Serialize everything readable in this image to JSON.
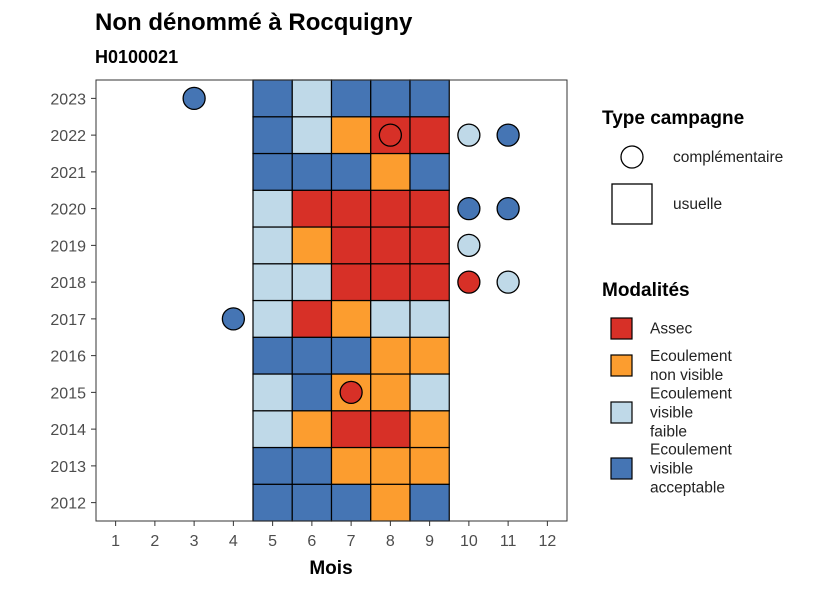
{
  "chart_data": {
    "type": "heatmap",
    "title": "Non dénommé à Rocquigny",
    "subtitle": "H0100021",
    "xlabel": "Mois",
    "ylabel": "",
    "x_ticks": [
      1,
      2,
      3,
      4,
      5,
      6,
      7,
      8,
      9,
      10,
      11,
      12
    ],
    "y_ticks": [
      2012,
      2013,
      2014,
      2015,
      2016,
      2017,
      2018,
      2019,
      2020,
      2021,
      2022,
      2023
    ],
    "xlim": [
      0.5,
      12.5
    ],
    "ylim": [
      2011.5,
      2023.5
    ],
    "grid": false,
    "categories": [
      {
        "key": "assec",
        "label": "Assec",
        "color": "#d73027"
      },
      {
        "key": "non_visible",
        "label": "Ecoulement non visible",
        "color": "#fc9d2f"
      },
      {
        "key": "visible_faible",
        "label": "Ecoulement visible faible",
        "color": "#bfd9e8"
      },
      {
        "key": "visible_acceptable",
        "label": "Ecoulement visible acceptable",
        "color": "#4575b4"
      }
    ],
    "campaign_types": [
      {
        "key": "complementaire",
        "label": "complémentaire",
        "shape": "circle"
      },
      {
        "key": "usuelle",
        "label": "usuelle",
        "shape": "square"
      }
    ],
    "legend_titles": {
      "type": "Type campagne",
      "modalites": "Modalités"
    },
    "legend_position": "right",
    "usual": [
      {
        "year": 2012,
        "months": {
          "5": "visible_acceptable",
          "6": "visible_acceptable",
          "7": "visible_acceptable",
          "8": "non_visible",
          "9": "visible_acceptable"
        }
      },
      {
        "year": 2013,
        "months": {
          "5": "visible_acceptable",
          "6": "visible_acceptable",
          "7": "non_visible",
          "8": "non_visible",
          "9": "non_visible"
        }
      },
      {
        "year": 2014,
        "months": {
          "5": "visible_faible",
          "6": "non_visible",
          "7": "assec",
          "8": "assec",
          "9": "non_visible"
        }
      },
      {
        "year": 2015,
        "months": {
          "5": "visible_faible",
          "6": "visible_acceptable",
          "7": "non_visible",
          "8": "non_visible",
          "9": "visible_faible"
        }
      },
      {
        "year": 2016,
        "months": {
          "5": "visible_acceptable",
          "6": "visible_acceptable",
          "7": "visible_acceptable",
          "8": "non_visible",
          "9": "non_visible"
        }
      },
      {
        "year": 2017,
        "months": {
          "5": "visible_faible",
          "6": "assec",
          "7": "non_visible",
          "8": "visible_faible",
          "9": "visible_faible"
        }
      },
      {
        "year": 2018,
        "months": {
          "5": "visible_faible",
          "6": "visible_faible",
          "7": "assec",
          "8": "assec",
          "9": "assec"
        }
      },
      {
        "year": 2019,
        "months": {
          "5": "visible_faible",
          "6": "non_visible",
          "7": "assec",
          "8": "assec",
          "9": "assec"
        }
      },
      {
        "year": 2020,
        "months": {
          "5": "visible_faible",
          "6": "assec",
          "7": "assec",
          "8": "assec",
          "9": "assec"
        }
      },
      {
        "year": 2021,
        "months": {
          "5": "visible_acceptable",
          "6": "visible_acceptable",
          "7": "visible_acceptable",
          "8": "non_visible",
          "9": "visible_acceptable"
        }
      },
      {
        "year": 2022,
        "months": {
          "5": "visible_acceptable",
          "6": "visible_faible",
          "7": "non_visible",
          "8": "assec",
          "9": "assec"
        }
      },
      {
        "year": 2023,
        "months": {
          "5": "visible_acceptable",
          "6": "visible_faible",
          "7": "visible_acceptable",
          "8": "visible_acceptable",
          "9": "visible_acceptable"
        }
      }
    ],
    "complementary": [
      {
        "year": 2023,
        "month": 3,
        "value": "visible_acceptable"
      },
      {
        "year": 2022,
        "month": 8,
        "value": "assec"
      },
      {
        "year": 2022,
        "month": 10,
        "value": "visible_faible"
      },
      {
        "year": 2022,
        "month": 11,
        "value": "visible_acceptable"
      },
      {
        "year": 2020,
        "month": 10,
        "value": "visible_acceptable"
      },
      {
        "year": 2020,
        "month": 11,
        "value": "visible_acceptable"
      },
      {
        "year": 2019,
        "month": 10,
        "value": "visible_faible"
      },
      {
        "year": 2018,
        "month": 10,
        "value": "assec"
      },
      {
        "year": 2018,
        "month": 11,
        "value": "visible_faible"
      },
      {
        "year": 2017,
        "month": 4,
        "value": "visible_acceptable"
      },
      {
        "year": 2015,
        "month": 7,
        "value": "assec"
      }
    ]
  }
}
